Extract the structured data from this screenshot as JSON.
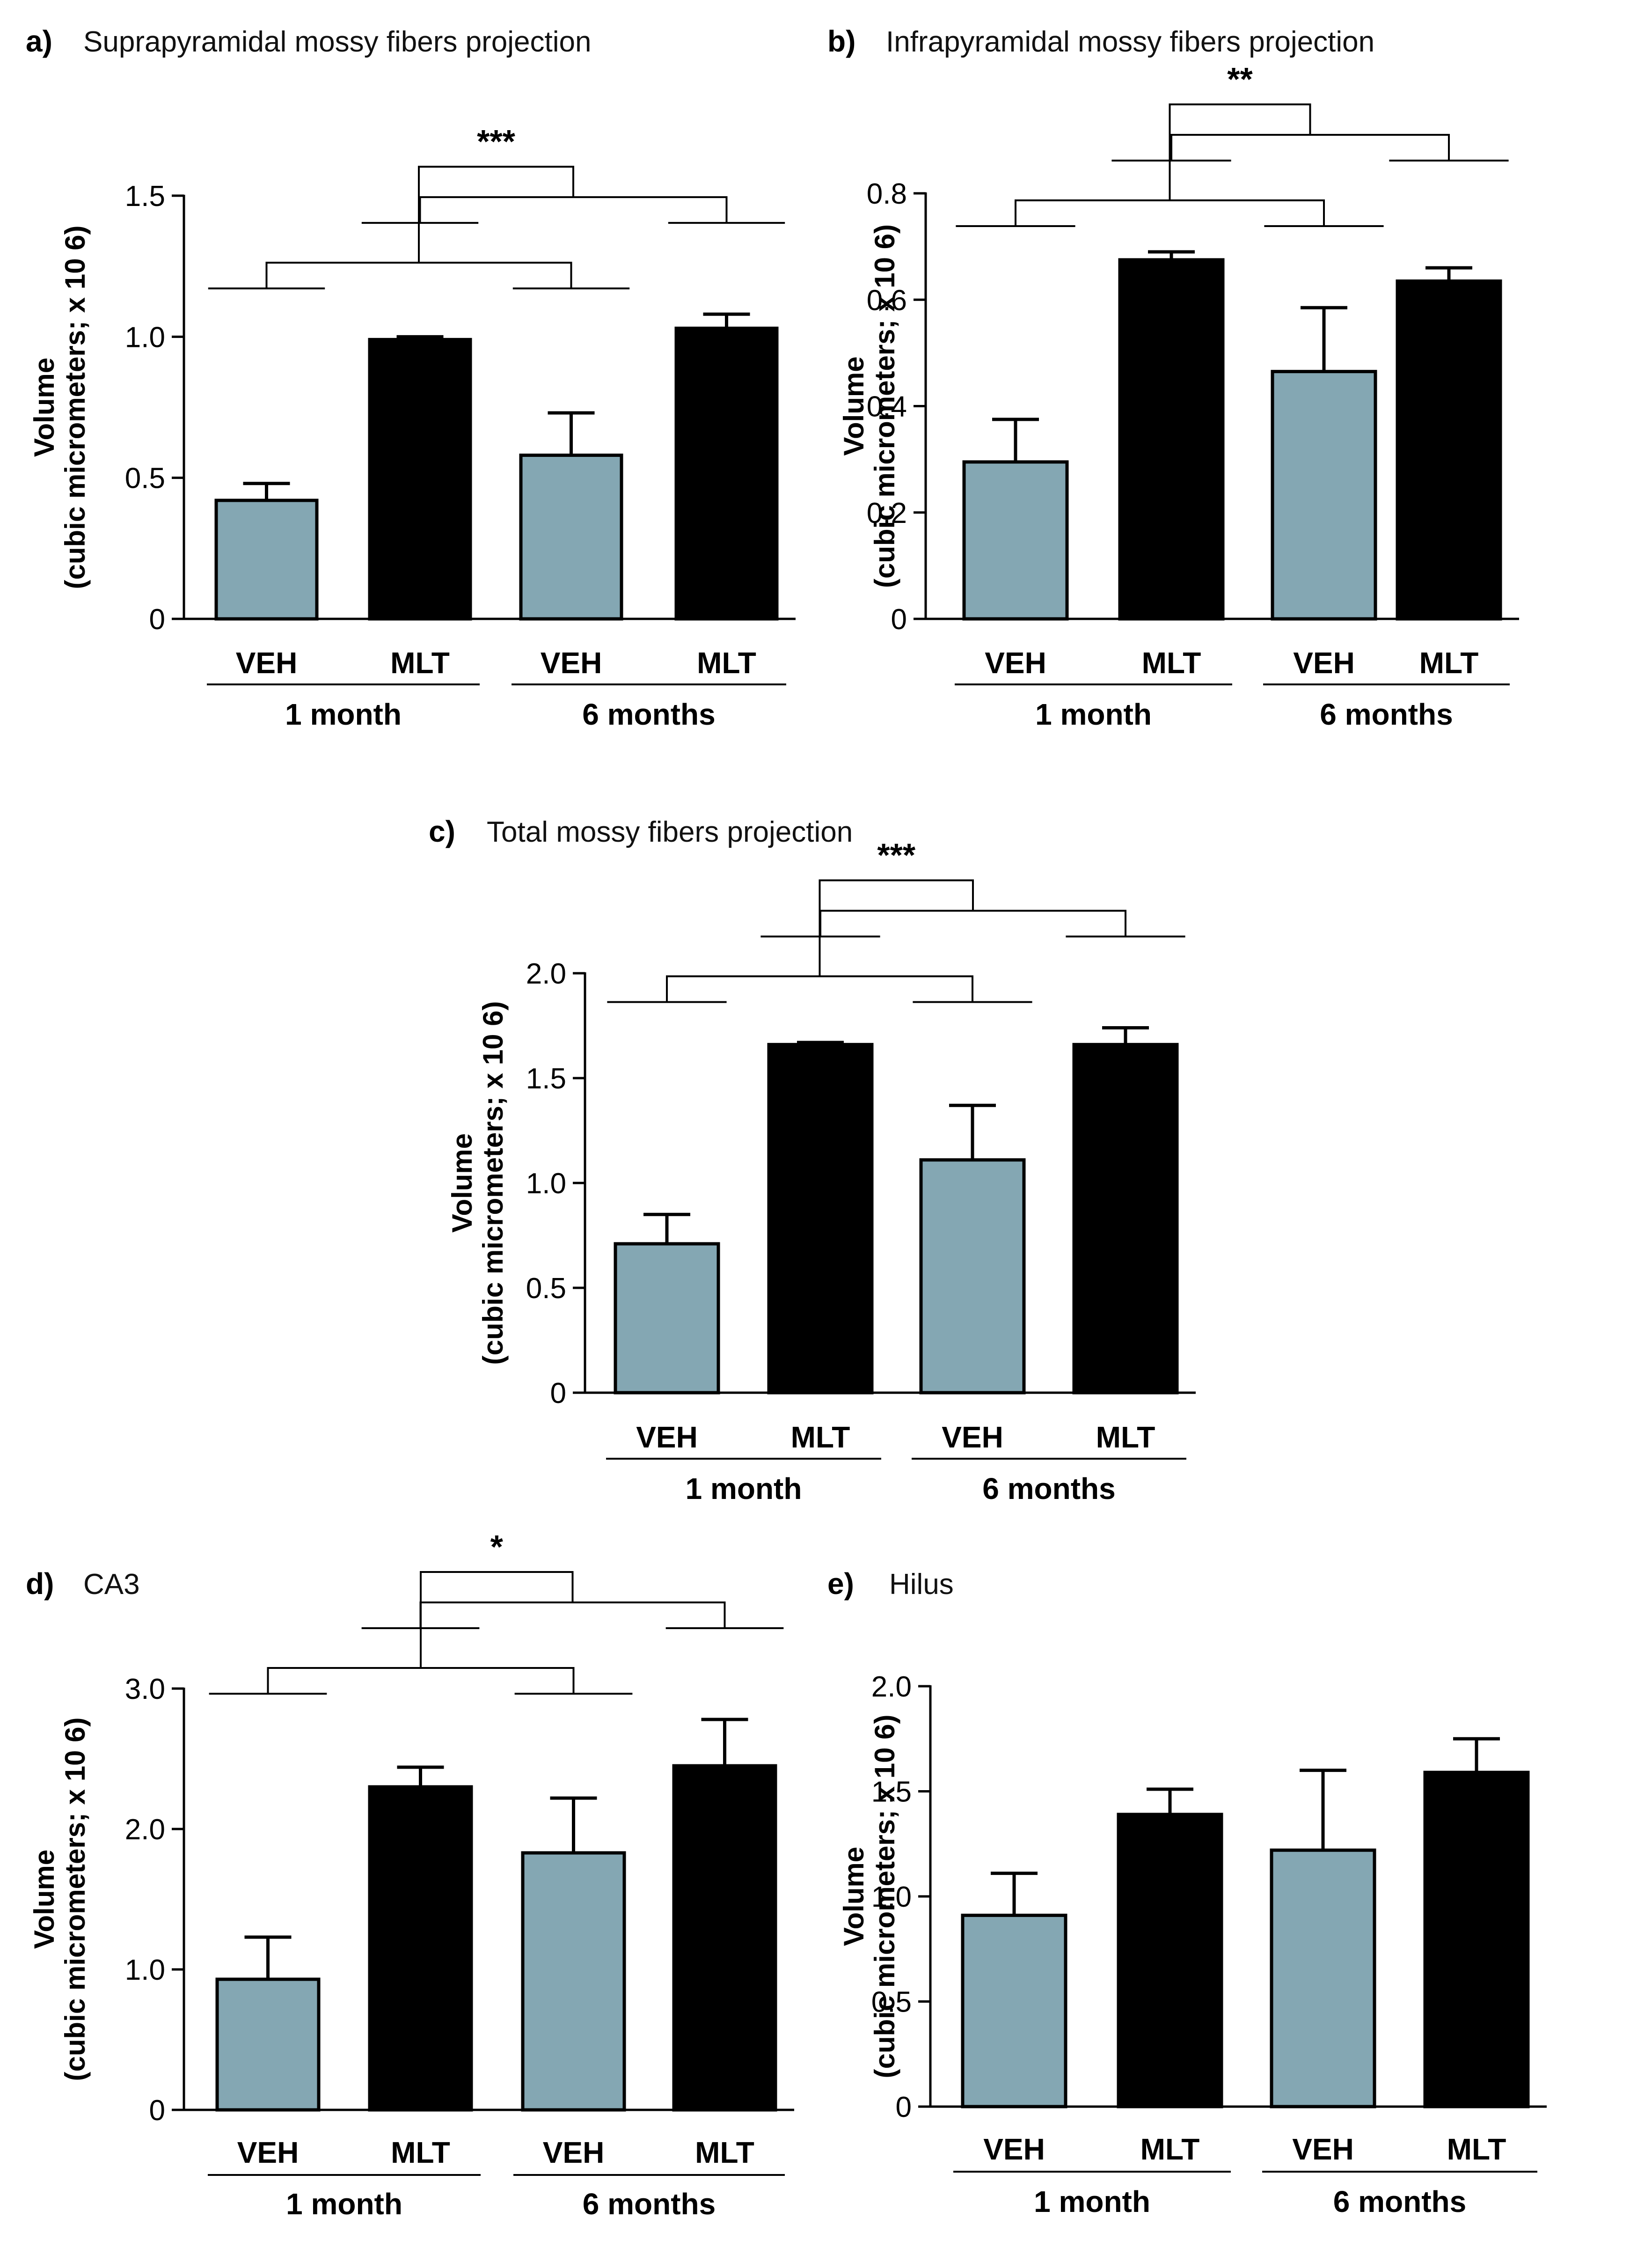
{
  "colors": {
    "veh": "#84a7b3",
    "mlt": "#000000",
    "axis": "#000000",
    "text": "#000000"
  },
  "chart_data": [
    {
      "id": "a",
      "letter": "a)",
      "type": "bar",
      "title": "Suprapyramidal mossy fibers projection",
      "ylabel": [
        "Volume",
        "(cubic micrometers; x 10 6)"
      ],
      "ylim": [
        0,
        1.5
      ],
      "yticks": [
        0,
        0.5,
        1.0,
        1.5
      ],
      "yticklabels": [
        "0",
        "0.5",
        "1.0",
        "1.5"
      ],
      "categories": [
        "VEH",
        "MLT",
        "VEH",
        "MLT"
      ],
      "groups": [
        "1 month",
        "6 months"
      ],
      "values": [
        0.42,
        0.99,
        0.58,
        1.03
      ],
      "errors": [
        0.06,
        0.01,
        0.15,
        0.05
      ],
      "significance": "***"
    },
    {
      "id": "b",
      "letter": "b)",
      "type": "bar",
      "title": "Infrapyramidal mossy fibers projection",
      "ylabel": [
        "Volume",
        "(cubic micrometers; x 10 6)"
      ],
      "ylim": [
        0,
        0.8
      ],
      "yticks": [
        0,
        0.2,
        0.4,
        0.6,
        0.8
      ],
      "yticklabels": [
        "0",
        "0.2",
        "0.4",
        "0.6",
        "0.8"
      ],
      "categories": [
        "VEH",
        "MLT",
        "VEH",
        "MLT"
      ],
      "groups": [
        "1 month",
        "6 months"
      ],
      "values": [
        0.295,
        0.675,
        0.465,
        0.635
      ],
      "errors": [
        0.08,
        0.015,
        0.12,
        0.025
      ],
      "significance": "**"
    },
    {
      "id": "c",
      "letter": "c)",
      "type": "bar",
      "title": "Total mossy fibers projection",
      "ylabel": [
        "Volume",
        "(cubic micrometers; x 10 6)"
      ],
      "ylim": [
        0,
        2.0
      ],
      "yticks": [
        0,
        0.5,
        1.0,
        1.5,
        2.0
      ],
      "yticklabels": [
        "0",
        "0.5",
        "1.0",
        "1.5",
        "2.0"
      ],
      "categories": [
        "VEH",
        "MLT",
        "VEH",
        "MLT"
      ],
      "groups": [
        "1 month",
        "6 months"
      ],
      "values": [
        0.71,
        1.66,
        1.11,
        1.66
      ],
      "errors": [
        0.14,
        0.01,
        0.26,
        0.08
      ],
      "significance": "***"
    },
    {
      "id": "d",
      "letter": "d)",
      "type": "bar",
      "title": "CA3",
      "ylabel": [
        "Volume",
        "(cubic micrometers; x 10 6)"
      ],
      "ylim": [
        0,
        3.0
      ],
      "yticks": [
        0,
        1.0,
        2.0,
        3.0
      ],
      "yticklabels": [
        "0",
        "1.0",
        "2.0",
        "3.0"
      ],
      "categories": [
        "VEH",
        "MLT",
        "VEH",
        "MLT"
      ],
      "groups": [
        "1 month",
        "6 months"
      ],
      "values": [
        0.93,
        2.3,
        1.83,
        2.45
      ],
      "errors": [
        0.3,
        0.14,
        0.39,
        0.33
      ],
      "significance": "*"
    },
    {
      "id": "e",
      "letter": "e)",
      "type": "bar",
      "title": "Hilus",
      "ylabel": [
        "Volume",
        "(cubic micrometers; x 10 6)"
      ],
      "ylim": [
        0,
        2.0
      ],
      "yticks": [
        0,
        0.5,
        1.0,
        1.5,
        2.0
      ],
      "yticklabels": [
        "0",
        "0.5",
        "1.0",
        "1.5",
        "2.0"
      ],
      "categories": [
        "VEH",
        "MLT",
        "VEH",
        "MLT"
      ],
      "groups": [
        "1 month",
        "6 months"
      ],
      "values": [
        0.91,
        1.39,
        1.22,
        1.59
      ],
      "errors": [
        0.2,
        0.12,
        0.38,
        0.16
      ],
      "significance": ""
    }
  ]
}
